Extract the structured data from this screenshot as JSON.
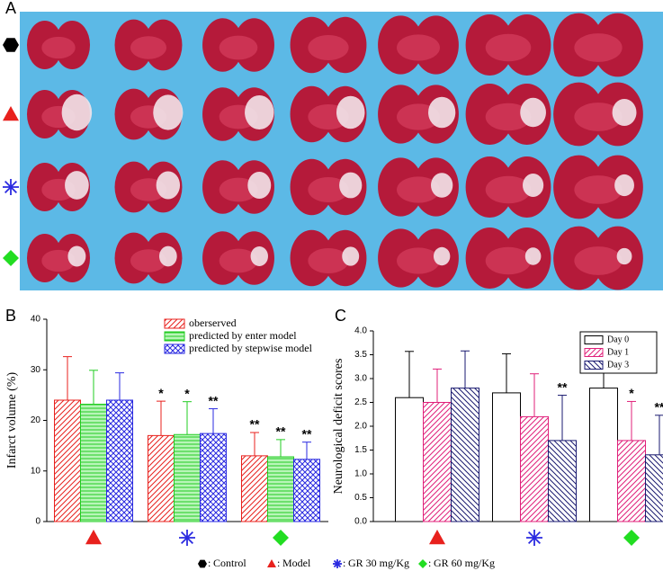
{
  "panels": {
    "a": "A",
    "b": "B",
    "c": "C"
  },
  "groups": [
    {
      "label": "Control",
      "shape": "hexagon",
      "color": "#000000"
    },
    {
      "label": "Model",
      "shape": "triangle",
      "color": "#e8211d"
    },
    {
      "label": "GR 30 mg/Kg",
      "shape": "asterisk",
      "color": "#2a2ae0"
    },
    {
      "label": "GR 60 mg/Kg",
      "shape": "diamond",
      "color": "#22dd22"
    }
  ],
  "legend_separator": ":",
  "chart_data": [
    {
      "type": "bar",
      "ylabel": "Infarct volume (%)",
      "categories": [
        null,
        null,
        null
      ],
      "ylim": [
        0,
        40
      ],
      "yticks": [
        0,
        10,
        20,
        30,
        40
      ],
      "series": [
        {
          "name": "oberserved",
          "color": "#e8211d",
          "pattern": "diagonal",
          "values": [
            24,
            17,
            13
          ],
          "errors": [
            8.6,
            6.8,
            4.6
          ],
          "significance": [
            null,
            "*",
            "**"
          ]
        },
        {
          "name": "predicted by enter model",
          "color": "#22cc22",
          "pattern": "horizontal",
          "values": [
            23.2,
            17.2,
            12.8
          ],
          "errors": [
            6.7,
            6.5,
            3.4
          ],
          "significance": [
            null,
            "*",
            "**"
          ]
        },
        {
          "name": "predicted by stepwise model",
          "color": "#2a2ae0",
          "pattern": "crosshatch",
          "values": [
            24,
            17.4,
            12.3
          ],
          "errors": [
            5.4,
            4.9,
            3.4
          ],
          "significance": [
            null,
            "**",
            "**"
          ]
        }
      ]
    },
    {
      "type": "bar",
      "ylabel": "Neurological deficit scores",
      "categories": [
        null,
        null,
        null
      ],
      "ylim": [
        0,
        4
      ],
      "yticks": [
        {
          "value": 0,
          "label": "0.0"
        },
        0.5,
        {
          "value": 1,
          "label": "1.0"
        },
        1.5,
        {
          "value": 2,
          "label": "2.0"
        },
        2.5,
        {
          "value": 3,
          "label": "3.0"
        },
        3.5,
        {
          "value": 4,
          "label": "4.0"
        }
      ],
      "series": [
        {
          "name": "Day 0",
          "color": "#000000",
          "pattern": "none",
          "values": [
            2.6,
            2.7,
            2.8
          ],
          "errors": [
            0.97,
            0.82,
            0.78
          ],
          "significance": [
            null,
            null,
            null
          ]
        },
        {
          "name": "Day 1",
          "color": "#e0207a",
          "pattern": "diagonal",
          "values": [
            2.5,
            2.2,
            1.7
          ],
          "errors": [
            0.7,
            0.9,
            0.82
          ],
          "significance": [
            null,
            null,
            "*"
          ]
        },
        {
          "name": "Day 3",
          "color": "#1a1a70",
          "pattern": "backdiagonal",
          "values": [
            2.8,
            1.7,
            1.4
          ],
          "errors": [
            0.78,
            0.95,
            0.83
          ],
          "significance": [
            null,
            "**",
            "**"
          ]
        }
      ]
    }
  ]
}
